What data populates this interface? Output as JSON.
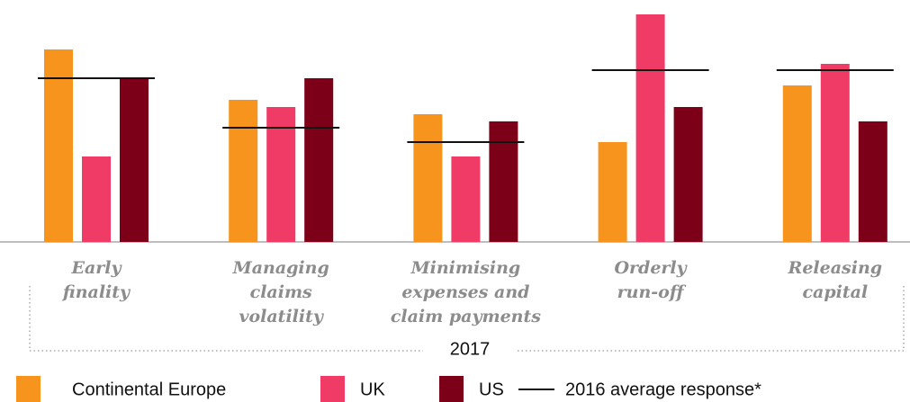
{
  "chart_data": {
    "type": "bar",
    "categories": [
      [
        "Early",
        "finality"
      ],
      [
        "Managing",
        "claims",
        "volatility"
      ],
      [
        "Minimising",
        "expenses and",
        "claim payments"
      ],
      [
        "Orderly",
        "run-off"
      ],
      [
        "Releasing",
        "capital"
      ]
    ],
    "x_label": "2017",
    "series": [
      {
        "name": "Continental Europe",
        "color": "#f7941d",
        "values": [
          214,
          158,
          142,
          111,
          174
        ]
      },
      {
        "name": "UK",
        "color": "#ef3b66",
        "values": [
          95,
          150,
          95,
          253,
          198
        ]
      },
      {
        "name": "US",
        "color": "#7d0019",
        "values": [
          182,
          182,
          134,
          150,
          134
        ]
      }
    ],
    "reference": {
      "name": "2016 average response*",
      "color": "#111111",
      "values": [
        182,
        127,
        111,
        191,
        191
      ]
    },
    "ylim": [
      0,
      260
    ]
  }
}
